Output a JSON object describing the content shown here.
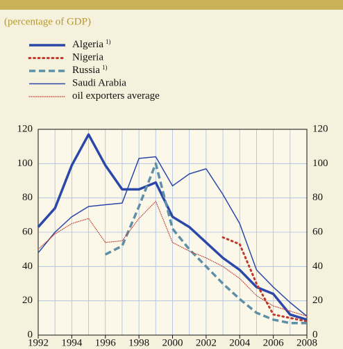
{
  "chart_data": {
    "type": "line",
    "subtitle": "(percentage of GDP)",
    "x": [
      1992,
      1993,
      1994,
      1995,
      1996,
      1997,
      1998,
      1999,
      2000,
      2001,
      2002,
      2003,
      2004,
      2005,
      2006,
      2007,
      2008
    ],
    "series": [
      {
        "name": "Algeria",
        "footnote": "1)",
        "color": "#2b47a8",
        "width": 3.5,
        "dash": "solid",
        "values": [
          63,
          74,
          99,
          117,
          99,
          85,
          85,
          89,
          69,
          63,
          54,
          45,
          38,
          28,
          24,
          12,
          9
        ]
      },
      {
        "name": "Nigeria",
        "color": "#c0392b",
        "width": 3,
        "dash": "dotted",
        "values": [
          null,
          null,
          null,
          null,
          null,
          null,
          null,
          null,
          null,
          null,
          null,
          57,
          53,
          30,
          12,
          10,
          8
        ]
      },
      {
        "name": "Russia",
        "footnote": "1)",
        "color": "#5e8fa6",
        "width": 3.5,
        "dash": "dashed",
        "values": [
          null,
          null,
          null,
          null,
          47,
          52,
          75,
          100,
          62,
          50,
          40,
          30,
          21,
          13,
          9,
          7,
          7
        ]
      },
      {
        "name": "Saudi Arabia",
        "color": "#2b47a8",
        "width": 1.5,
        "dash": "solid",
        "values": [
          48,
          60,
          69,
          75,
          76,
          77,
          103,
          104,
          87,
          94,
          97,
          82,
          65,
          38,
          28,
          19,
          11
        ]
      },
      {
        "name": "oil exporters average",
        "color": "#c0392b",
        "width": 1.2,
        "dash": "dotted",
        "values": [
          50,
          59,
          65,
          68,
          54,
          55,
          68,
          78,
          54,
          49,
          45,
          40,
          33,
          23,
          17,
          14,
          11
        ]
      }
    ],
    "xlim": [
      1992,
      2008
    ],
    "xticks": [
      1992,
      1994,
      1996,
      1998,
      2000,
      2002,
      2004,
      2006,
      2008
    ],
    "ylim": [
      0,
      120
    ],
    "yticks": [
      0,
      20,
      40,
      60,
      80,
      100,
      120
    ],
    "grid": true
  }
}
